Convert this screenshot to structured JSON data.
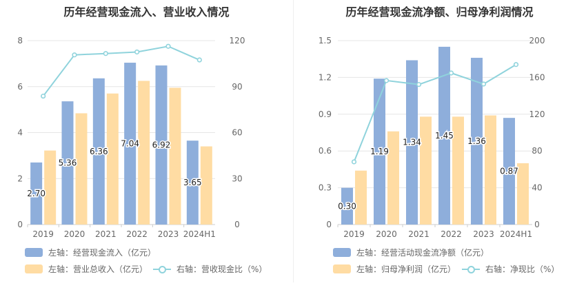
{
  "colors": {
    "bar1": "#8eaedb",
    "bar2": "#ffdca3",
    "line": "#8fd3dc",
    "grid": "#e6e6e6",
    "axis_text": "#666666",
    "label": "#222222"
  },
  "chart_data": [
    {
      "type": "bar",
      "title": "历年经营现金流入、营业收入情况",
      "categories": [
        "2019",
        "2020",
        "2021",
        "2022",
        "2023",
        "2024H1"
      ],
      "left_ylim": [
        0,
        8
      ],
      "left_ticks": [
        "0",
        "2",
        "4",
        "6",
        "8"
      ],
      "right_ylim": [
        0,
        120
      ],
      "right_ticks": [
        "0",
        "30",
        "60",
        "90",
        "120"
      ],
      "grid": true,
      "legend_placement": "bottom-left",
      "series": [
        {
          "name": "左轴：经营现金流入（亿元）",
          "kind": "bar",
          "axis": "left",
          "values": [
            2.7,
            5.36,
            6.36,
            7.04,
            6.92,
            3.65
          ],
          "labels": [
            "2.70",
            "5.36",
            "6.36",
            "7.04",
            "6.92",
            "3.65"
          ]
        },
        {
          "name": "左轴：营业总收入（亿元）",
          "kind": "bar",
          "axis": "left",
          "values": [
            3.22,
            4.84,
            5.7,
            6.25,
            5.95,
            3.4
          ]
        },
        {
          "name": "右轴：营收现金比（%）",
          "kind": "line",
          "axis": "right",
          "values": [
            83.8,
            110.7,
            111.6,
            112.6,
            116.3,
            107.4
          ]
        }
      ]
    },
    {
      "type": "bar",
      "title": "历年经营现金流净额、归母净利润情况",
      "categories": [
        "2019",
        "2020",
        "2021",
        "2022",
        "2023",
        "2024H1"
      ],
      "left_ylim": [
        0,
        1.5
      ],
      "left_ticks": [
        "0",
        "0.3",
        "0.6",
        "0.9",
        "1.2",
        "1.5"
      ],
      "right_ylim": [
        0,
        200
      ],
      "right_ticks": [
        "0",
        "40",
        "80",
        "120",
        "160",
        "200"
      ],
      "grid": true,
      "legend_placement": "bottom-left",
      "series": [
        {
          "name": "左轴：经营活动现金流净额（亿元）",
          "kind": "bar",
          "axis": "left",
          "values": [
            0.3,
            1.19,
            1.34,
            1.45,
            1.36,
            0.87
          ],
          "labels": [
            "0.30",
            "1.19",
            "1.34",
            "1.45",
            "1.36",
            "0.87"
          ]
        },
        {
          "name": "左轴：归母净利润（亿元）",
          "kind": "bar",
          "axis": "left",
          "values": [
            0.44,
            0.76,
            0.88,
            0.88,
            0.89,
            0.5
          ]
        },
        {
          "name": "右轴：净现比（%）",
          "kind": "line",
          "axis": "right",
          "values": [
            68.2,
            156.6,
            152.3,
            164.8,
            152.8,
            174.0
          ]
        }
      ]
    }
  ]
}
